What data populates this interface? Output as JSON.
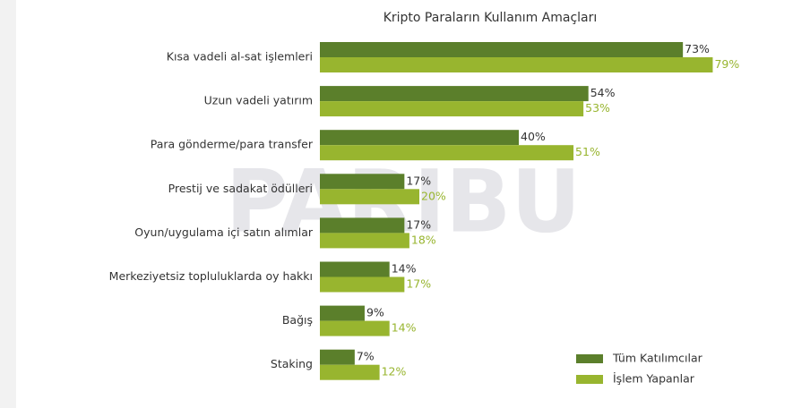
{
  "chart_data": {
    "type": "bar",
    "orientation": "horizontal",
    "title": "Kripto Paraların Kullanım Amaçları",
    "watermark": "PARIBU",
    "categories": [
      "Kısa vadeli al-sat işlemleri",
      "Uzun vadeli yatırım",
      "Para gönderme/para transfer",
      "Prestij ve sadakat ödülleri",
      "Oyun/uygulama içi satın alımlar",
      "Merkeziyetsiz topluluklarda oy hakkı",
      "Bağış",
      "Staking"
    ],
    "series": [
      {
        "name": "Tüm Katılımcılar",
        "color": "#5b7f2b",
        "label_color": "#333333",
        "values": [
          73,
          54,
          40,
          17,
          17,
          14,
          9,
          7
        ],
        "value_labels": [
          "73%",
          "54%",
          "40%",
          "17%",
          "17%",
          "14%",
          "9%",
          "7%"
        ]
      },
      {
        "name": "İşlem Yapanlar",
        "color": "#98b52f",
        "label_color": "#98b52f",
        "values": [
          79,
          53,
          51,
          20,
          18,
          17,
          14,
          12
        ],
        "value_labels": [
          "79%",
          "53%",
          "51%",
          "20%",
          "18%",
          "17%",
          "14%",
          "12%"
        ]
      }
    ],
    "legend": "bottom-right"
  }
}
